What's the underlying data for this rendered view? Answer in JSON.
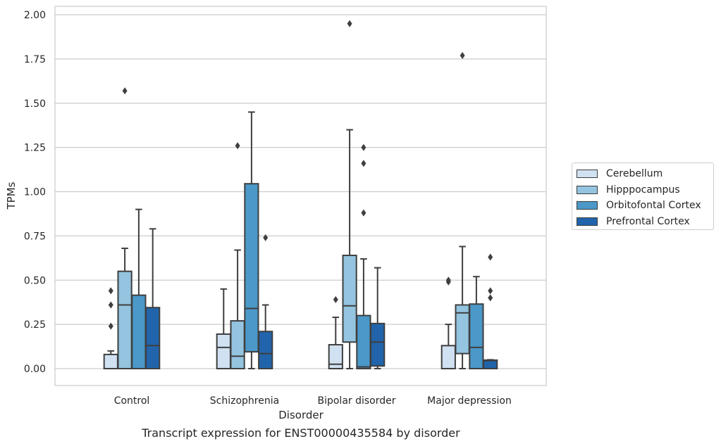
{
  "chart_data": {
    "type": "boxplot",
    "title": "Transcript expression for ENST00000435584 by disorder",
    "xlabel": "Disorder",
    "ylabel": "TPMs",
    "ylim": [
      -0.1,
      2.05
    ],
    "yticks": [
      "0.00",
      "0.25",
      "0.50",
      "0.75",
      "1.00",
      "1.25",
      "1.50",
      "1.75",
      "2.00"
    ],
    "ytick_values": [
      0,
      0.25,
      0.5,
      0.75,
      1.0,
      1.25,
      1.5,
      1.75,
      2.0
    ],
    "grid": "horizontal",
    "legend_position": "right",
    "categories": [
      "Control",
      "Schizophrenia",
      "Bipolar disorder",
      "Major depression"
    ],
    "series": [
      {
        "name": "Cerebellum",
        "color": "#d0e1f2",
        "boxes": [
          {
            "whisker_low": 0,
            "q1": 0,
            "median": 0,
            "q3": 0.08,
            "whisker_high": 0.1,
            "outliers": [
              0.24,
              0.36,
              0.44
            ]
          },
          {
            "whisker_low": 0,
            "q1": 0,
            "median": 0.12,
            "q3": 0.195,
            "whisker_high": 0.45,
            "outliers": []
          },
          {
            "whisker_low": 0,
            "q1": 0,
            "median": 0.025,
            "q3": 0.135,
            "whisker_high": 0.29,
            "outliers": [
              0.39
            ]
          },
          {
            "whisker_low": 0,
            "q1": 0,
            "median": 0,
            "q3": 0.13,
            "whisker_high": 0.25,
            "outliers": [
              0.49,
              0.5
            ]
          }
        ]
      },
      {
        "name": "Hipppocampus",
        "color": "#94c4df",
        "boxes": [
          {
            "whisker_low": 0,
            "q1": 0,
            "median": 0.36,
            "q3": 0.55,
            "whisker_high": 0.68,
            "outliers": [
              1.57
            ]
          },
          {
            "whisker_low": 0,
            "q1": 0,
            "median": 0.07,
            "q3": 0.27,
            "whisker_high": 0.67,
            "outliers": [
              1.26
            ]
          },
          {
            "whisker_low": 0,
            "q1": 0.15,
            "median": 0.355,
            "q3": 0.64,
            "whisker_high": 1.35,
            "outliers": [
              1.95
            ]
          },
          {
            "whisker_low": 0,
            "q1": 0.085,
            "median": 0.315,
            "q3": 0.36,
            "whisker_high": 0.69,
            "outliers": [
              1.77
            ]
          }
        ]
      },
      {
        "name": "Orbitofontal Cortex",
        "color": "#4b98c9",
        "boxes": [
          {
            "whisker_low": 0,
            "q1": 0,
            "median": 0,
            "q3": 0.415,
            "whisker_high": 0.9,
            "outliers": []
          },
          {
            "whisker_low": 0,
            "q1": 0.095,
            "median": 0.34,
            "q3": 1.045,
            "whisker_high": 1.45,
            "outliers": []
          },
          {
            "whisker_low": 0,
            "q1": 0,
            "median": 0.01,
            "q3": 0.3,
            "whisker_high": 0.62,
            "outliers": [
              0.88,
              1.16,
              1.25
            ]
          },
          {
            "whisker_low": 0,
            "q1": 0,
            "median": 0.12,
            "q3": 0.365,
            "whisker_high": 0.52,
            "outliers": []
          }
        ]
      },
      {
        "name": "Prefrontal Cortex",
        "color": "#2164ab",
        "boxes": [
          {
            "whisker_low": 0,
            "q1": 0,
            "median": 0.13,
            "q3": 0.345,
            "whisker_high": 0.79,
            "outliers": []
          },
          {
            "whisker_low": 0,
            "q1": 0,
            "median": 0.085,
            "q3": 0.21,
            "whisker_high": 0.36,
            "outliers": [
              0.74
            ]
          },
          {
            "whisker_low": 0,
            "q1": 0.015,
            "median": 0.15,
            "q3": 0.255,
            "whisker_high": 0.57,
            "outliers": []
          },
          {
            "whisker_low": 0,
            "q1": 0,
            "median": 0.045,
            "q3": 0.048,
            "whisker_high": 0.05,
            "outliers": [
              0.4,
              0.44,
              0.63
            ]
          }
        ]
      }
    ]
  }
}
